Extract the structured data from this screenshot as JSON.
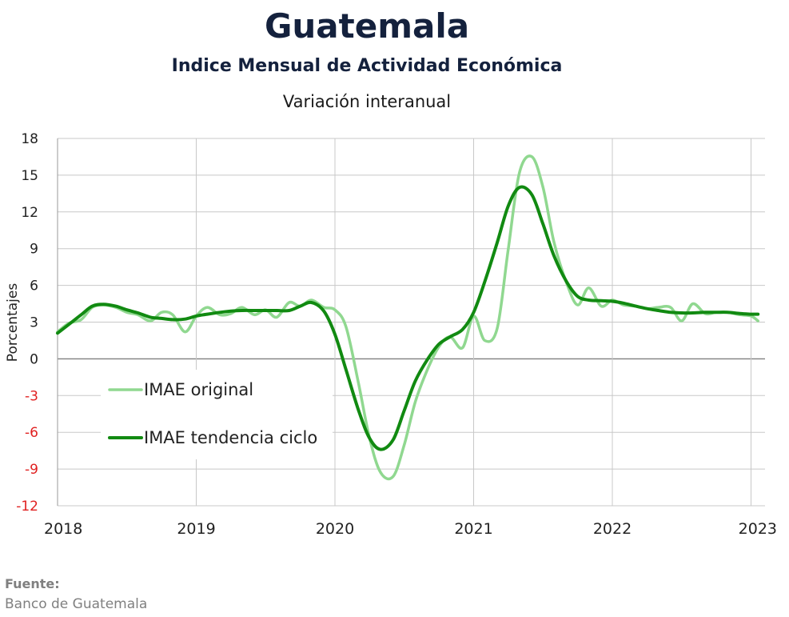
{
  "header": {
    "title": "Guatemala",
    "subtitle": "Indice Mensual de  Actividad Económica",
    "subtitle2": "Variación interanual"
  },
  "source": {
    "label": "Fuente:",
    "value": "Banco de Guatemala"
  },
  "colors": {
    "original": "#90d890",
    "trend": "#118a11",
    "negative_tick": "#e02020",
    "grid": "#c8c8c8",
    "zero_line": "#7f7f7f"
  },
  "chart_data": {
    "type": "line",
    "title": "Guatemala",
    "subtitle": "Indice Mensual de  Actividad Económica — Variación interanual",
    "xlabel": "",
    "ylabel": "Porcentajes",
    "xlim": [
      2018.0,
      2023.1
    ],
    "ylim": [
      -12,
      18
    ],
    "yticks": [
      18,
      15,
      12,
      9,
      6,
      3,
      0,
      -3,
      -6,
      -9,
      -12
    ],
    "xticks": [
      "2018",
      "2019",
      "2020",
      "2021",
      "2022",
      "2023"
    ],
    "xtick_values": [
      2018,
      2019,
      2020,
      2021,
      2022,
      2023
    ],
    "grid": true,
    "legend_position": "lower-left",
    "series": [
      {
        "name": "IMAE original",
        "points": [
          [
            2018.0,
            2.2
          ],
          [
            2018.08,
            2.9
          ],
          [
            2018.17,
            3.2
          ],
          [
            2018.25,
            4.2
          ],
          [
            2018.33,
            4.4
          ],
          [
            2018.42,
            4.2
          ],
          [
            2018.5,
            3.8
          ],
          [
            2018.58,
            3.6
          ],
          [
            2018.67,
            3.1
          ],
          [
            2018.75,
            3.8
          ],
          [
            2018.83,
            3.6
          ],
          [
            2018.92,
            2.2
          ],
          [
            2019.0,
            3.5
          ],
          [
            2019.08,
            4.2
          ],
          [
            2019.17,
            3.6
          ],
          [
            2019.25,
            3.7
          ],
          [
            2019.33,
            4.2
          ],
          [
            2019.42,
            3.6
          ],
          [
            2019.5,
            4.0
          ],
          [
            2019.58,
            3.4
          ],
          [
            2019.67,
            4.6
          ],
          [
            2019.75,
            4.3
          ],
          [
            2019.83,
            4.8
          ],
          [
            2019.92,
            4.2
          ],
          [
            2020.0,
            4.0
          ],
          [
            2020.08,
            2.6
          ],
          [
            2020.17,
            -2.0
          ],
          [
            2020.25,
            -6.5
          ],
          [
            2020.33,
            -9.3
          ],
          [
            2020.42,
            -9.6
          ],
          [
            2020.5,
            -7.0
          ],
          [
            2020.58,
            -3.5
          ],
          [
            2020.67,
            -0.8
          ],
          [
            2020.75,
            1.0
          ],
          [
            2020.83,
            1.8
          ],
          [
            2020.92,
            0.9
          ],
          [
            2021.0,
            3.5
          ],
          [
            2021.08,
            1.5
          ],
          [
            2021.17,
            2.5
          ],
          [
            2021.25,
            9.0
          ],
          [
            2021.33,
            15.2
          ],
          [
            2021.42,
            16.5
          ],
          [
            2021.5,
            14.0
          ],
          [
            2021.58,
            9.5
          ],
          [
            2021.67,
            6.2
          ],
          [
            2021.75,
            4.4
          ],
          [
            2021.83,
            5.8
          ],
          [
            2021.92,
            4.3
          ],
          [
            2022.0,
            4.8
          ],
          [
            2022.08,
            4.4
          ],
          [
            2022.17,
            4.3
          ],
          [
            2022.25,
            4.1
          ],
          [
            2022.33,
            4.2
          ],
          [
            2022.42,
            4.2
          ],
          [
            2022.5,
            3.1
          ],
          [
            2022.58,
            4.5
          ],
          [
            2022.67,
            3.7
          ],
          [
            2022.75,
            3.8
          ],
          [
            2022.83,
            3.8
          ],
          [
            2022.92,
            3.6
          ],
          [
            2023.0,
            3.5
          ],
          [
            2023.05,
            3.1
          ]
        ]
      },
      {
        "name": "IMAE tendencia ciclo",
        "points": [
          [
            2018.0,
            2.1
          ],
          [
            2018.08,
            2.8
          ],
          [
            2018.17,
            3.6
          ],
          [
            2018.25,
            4.3
          ],
          [
            2018.33,
            4.45
          ],
          [
            2018.42,
            4.3
          ],
          [
            2018.5,
            4.0
          ],
          [
            2018.58,
            3.75
          ],
          [
            2018.67,
            3.4
          ],
          [
            2018.75,
            3.3
          ],
          [
            2018.83,
            3.2
          ],
          [
            2018.92,
            3.25
          ],
          [
            2019.0,
            3.5
          ],
          [
            2019.08,
            3.65
          ],
          [
            2019.17,
            3.8
          ],
          [
            2019.25,
            3.9
          ],
          [
            2019.33,
            3.95
          ],
          [
            2019.42,
            3.95
          ],
          [
            2019.5,
            3.95
          ],
          [
            2019.58,
            3.95
          ],
          [
            2019.67,
            3.95
          ],
          [
            2019.75,
            4.3
          ],
          [
            2019.83,
            4.6
          ],
          [
            2019.92,
            3.9
          ],
          [
            2020.0,
            2.0
          ],
          [
            2020.08,
            -0.9
          ],
          [
            2020.17,
            -4.2
          ],
          [
            2020.25,
            -6.5
          ],
          [
            2020.33,
            -7.4
          ],
          [
            2020.42,
            -6.6
          ],
          [
            2020.5,
            -4.2
          ],
          [
            2020.58,
            -1.8
          ],
          [
            2020.67,
            0.0
          ],
          [
            2020.75,
            1.2
          ],
          [
            2020.83,
            1.8
          ],
          [
            2020.92,
            2.4
          ],
          [
            2021.0,
            3.8
          ],
          [
            2021.08,
            6.3
          ],
          [
            2021.17,
            9.5
          ],
          [
            2021.25,
            12.5
          ],
          [
            2021.33,
            14.0
          ],
          [
            2021.42,
            13.4
          ],
          [
            2021.5,
            11.0
          ],
          [
            2021.58,
            8.4
          ],
          [
            2021.67,
            6.3
          ],
          [
            2021.75,
            5.1
          ],
          [
            2021.83,
            4.8
          ],
          [
            2021.92,
            4.75
          ],
          [
            2022.0,
            4.7
          ],
          [
            2022.08,
            4.55
          ],
          [
            2022.17,
            4.3
          ],
          [
            2022.25,
            4.1
          ],
          [
            2022.33,
            3.95
          ],
          [
            2022.42,
            3.8
          ],
          [
            2022.5,
            3.75
          ],
          [
            2022.58,
            3.75
          ],
          [
            2022.67,
            3.8
          ],
          [
            2022.75,
            3.8
          ],
          [
            2022.83,
            3.8
          ],
          [
            2022.92,
            3.7
          ],
          [
            2023.0,
            3.65
          ],
          [
            2023.05,
            3.65
          ]
        ]
      }
    ]
  }
}
